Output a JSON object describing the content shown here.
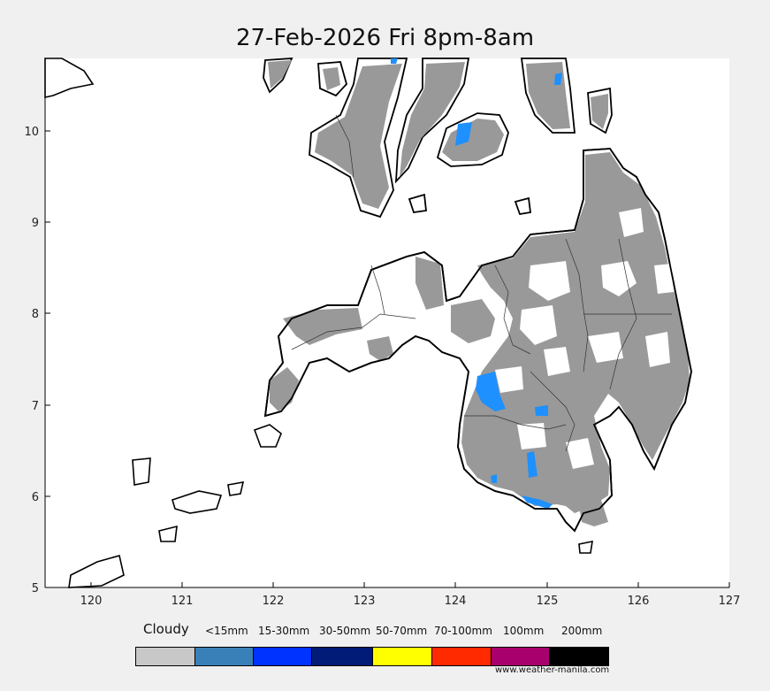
{
  "title": "27-Feb-2026 Fri 8pm-8am",
  "axes": {
    "x_ticks": [
      "120",
      "121",
      "122",
      "123",
      "124",
      "125",
      "126",
      "127"
    ],
    "y_ticks": [
      "5",
      "6",
      "7",
      "8",
      "9",
      "10"
    ]
  },
  "legend": {
    "title": "Cloudy",
    "items": [
      {
        "label": "",
        "color": "#c8c8c8"
      },
      {
        "label": "<15mm",
        "color": "#3a80b8"
      },
      {
        "label": "15-30mm",
        "color": "#0033ff"
      },
      {
        "label": "30-50mm",
        "color": "#001c78"
      },
      {
        "label": "50-70mm",
        "color": "#ffff00"
      },
      {
        "label": "70-100mm",
        "color": "#ff2a00"
      },
      {
        "label": "100mm",
        "color": "#a8006c"
      },
      {
        "label": "200mm",
        "color": "#000000"
      }
    ]
  },
  "credit": "www.weather-manila.com",
  "colors": {
    "cloud": "#999999",
    "rain_light": "#1e90ff",
    "land_outline": "#000000"
  }
}
